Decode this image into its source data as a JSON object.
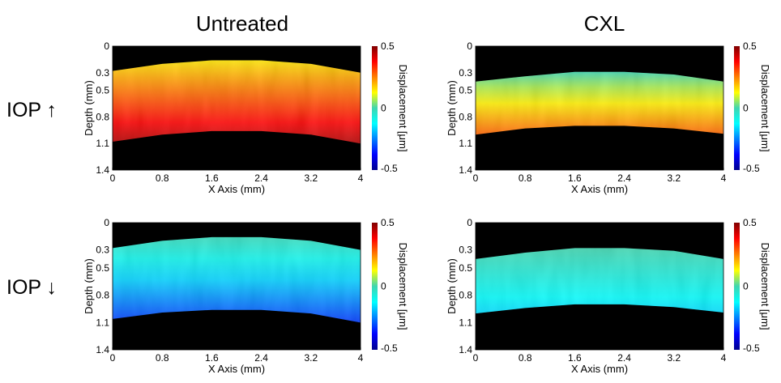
{
  "figure": {
    "column_titles": [
      "Untreated",
      "CXL"
    ],
    "row_labels": [
      "IOP ↑",
      "IOP ↓"
    ]
  },
  "colors": {
    "colormap": "jet",
    "background": "#000000"
  },
  "chart_data": [
    {
      "type": "heatmap",
      "column": "Untreated",
      "row": "IOP ↑",
      "xlabel": "X Axis (mm)",
      "ylabel": "Depth (mm)",
      "x_ticks": [
        "0",
        "0.8",
        "1.6",
        "2.4",
        "3.2",
        "4"
      ],
      "y_ticks": [
        "0",
        "0.3",
        "0.5",
        "0.8",
        "1.1",
        "1.4"
      ],
      "xlim": [
        0,
        4
      ],
      "ylim": [
        0,
        1.4
      ],
      "colorbar": {
        "label": "Displacement [μm]",
        "ticks": [
          "0.5",
          "0",
          "-0.5"
        ],
        "range": [
          -0.5,
          0.5
        ]
      },
      "tissue": {
        "top_depth": [
          0.28,
          0.2,
          0.16,
          0.16,
          0.2,
          0.3
        ],
        "bottom_depth": [
          1.08,
          1.0,
          0.96,
          0.96,
          1.0,
          1.1
        ]
      },
      "displacement_top": 0.15,
      "displacement_bottom": 0.45
    },
    {
      "type": "heatmap",
      "column": "CXL",
      "row": "IOP ↑",
      "xlabel": "X Axis (mm)",
      "ylabel": "Depth (mm)",
      "x_ticks": [
        "0",
        "0.8",
        "1.6",
        "2.4",
        "3.2",
        "4"
      ],
      "y_ticks": [
        "0",
        "0.3",
        "0.5",
        "0.8",
        "1.1",
        "1.4"
      ],
      "xlim": [
        0,
        4
      ],
      "ylim": [
        0,
        1.4
      ],
      "colorbar": {
        "label": "Displacement [μm]",
        "ticks": [
          "0.5",
          "0",
          "-0.5"
        ],
        "range": [
          -0.5,
          0.5
        ]
      },
      "tissue": {
        "top_depth": [
          0.4,
          0.34,
          0.29,
          0.29,
          0.32,
          0.4
        ],
        "bottom_depth": [
          1.0,
          0.93,
          0.9,
          0.9,
          0.93,
          0.99
        ]
      },
      "displacement_top": 0.0,
      "displacement_bottom": 0.28
    },
    {
      "type": "heatmap",
      "column": "Untreated",
      "row": "IOP ↓",
      "xlabel": "X Axis (mm)",
      "ylabel": "Depth (mm)",
      "x_ticks": [
        "0",
        "0.8",
        "1.6",
        "2.4",
        "3.2",
        "4"
      ],
      "y_ticks": [
        "0",
        "0.3",
        "0.5",
        "0.8",
        "1.1",
        "1.4"
      ],
      "xlim": [
        0,
        4
      ],
      "ylim": [
        0,
        1.4
      ],
      "colorbar": {
        "label": "Displacement [μm]",
        "ticks": [
          "0.5",
          "0",
          "-0.5"
        ],
        "range": [
          -0.5,
          0.5
        ]
      },
      "tissue": {
        "top_depth": [
          0.28,
          0.2,
          0.16,
          0.16,
          0.2,
          0.3
        ],
        "bottom_depth": [
          1.06,
          0.99,
          0.96,
          0.96,
          1.0,
          1.1
        ]
      },
      "displacement_top": -0.02,
      "displacement_bottom": -0.32
    },
    {
      "type": "heatmap",
      "column": "CXL",
      "row": "IOP ↓",
      "xlabel": "X Axis (mm)",
      "ylabel": "Depth (mm)",
      "x_ticks": [
        "0",
        "0.8",
        "1.6",
        "2.4",
        "3.2",
        "4"
      ],
      "y_ticks": [
        "0",
        "0.3",
        "0.5",
        "0.8",
        "1.1",
        "1.4"
      ],
      "xlim": [
        0,
        4
      ],
      "ylim": [
        0,
        1.4
      ],
      "colorbar": {
        "label": "Displacement [μm]",
        "ticks": [
          "0.5",
          "0",
          "-0.5"
        ],
        "range": [
          -0.5,
          0.5
        ]
      },
      "tissue": {
        "top_depth": [
          0.4,
          0.33,
          0.28,
          0.28,
          0.31,
          0.4
        ],
        "bottom_depth": [
          1.0,
          0.94,
          0.9,
          0.9,
          0.93,
          0.99
        ]
      },
      "displacement_top": 0.0,
      "displacement_bottom": -0.16
    }
  ]
}
